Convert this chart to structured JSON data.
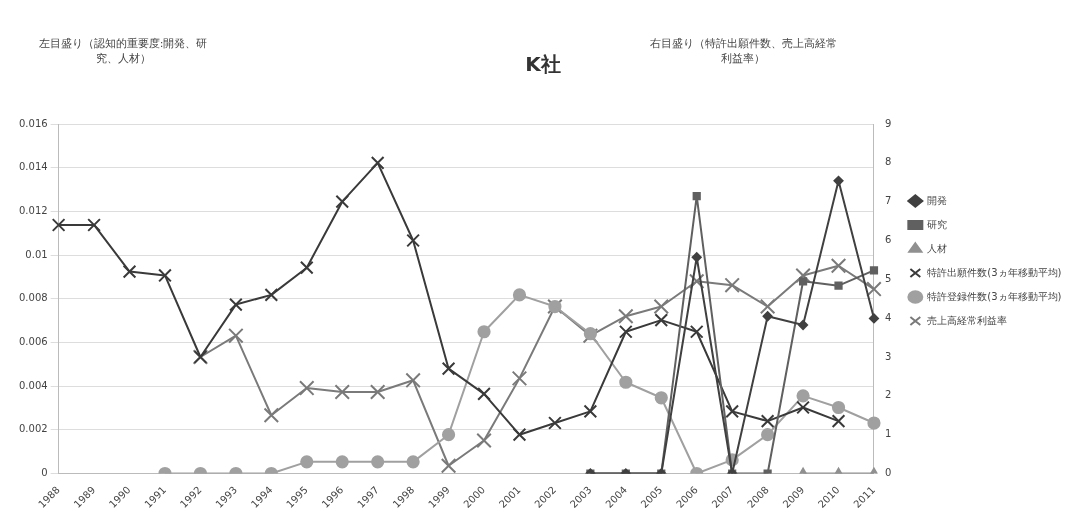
{
  "chart_data": {
    "type": "line",
    "title": "K社",
    "ylabel": "左目盛り（認知的重要度:開発、研究、人材）",
    "y2label": "右目盛り（特許出願件数、売上高経常利益率）",
    "categories": [
      "1988",
      "1989",
      "1990",
      "1991",
      "1992",
      "1993",
      "1994",
      "1995",
      "1996",
      "1997",
      "1998",
      "1999",
      "2000",
      "2001",
      "2002",
      "2003",
      "2004",
      "2005",
      "2006",
      "2007",
      "2008",
      "2009",
      "2010",
      "2011"
    ],
    "ylim": [
      0,
      0.016
    ],
    "yticks": [
      0,
      0.002,
      0.004,
      0.006,
      0.008,
      0.01,
      0.012,
      0.014,
      0.016
    ],
    "y2lim": [
      0,
      9
    ],
    "y2ticks": [
      0,
      1,
      2,
      3,
      4,
      5,
      6,
      7,
      8,
      9
    ],
    "grid": "y",
    "legend": "right",
    "series": [
      {
        "name": "開発",
        "color": "#404040",
        "marker": "diamond",
        "values": [
          null,
          null,
          null,
          null,
          null,
          null,
          null,
          null,
          null,
          null,
          null,
          null,
          null,
          null,
          null,
          0,
          0,
          0,
          0.0099,
          0,
          0.0072,
          0.0068,
          0.0134,
          0.0071
        ]
      },
      {
        "name": "研究",
        "color": "#606060",
        "marker": "square",
        "values": [
          null,
          null,
          null,
          null,
          null,
          null,
          null,
          null,
          null,
          null,
          null,
          null,
          null,
          null,
          null,
          0,
          0,
          0,
          0.0127,
          0,
          0,
          0.0088,
          0.0086,
          0.0093
        ]
      },
      {
        "name": "人材",
        "color": "#909090",
        "marker": "triangle",
        "values": [
          null,
          null,
          null,
          null,
          null,
          null,
          null,
          null,
          null,
          null,
          null,
          null,
          null,
          null,
          null,
          null,
          null,
          null,
          null,
          null,
          null,
          0,
          0,
          0
        ]
      },
      {
        "name": "特許出願件数(3ヵ年移動平均)",
        "color": "#3a3a3a",
        "marker": "cross",
        "axis": "y2",
        "values": [
          6.4,
          6.4,
          5.2,
          5.1,
          3.0,
          4.35,
          4.6,
          5.3,
          7.0,
          8.0,
          6.0,
          2.7,
          2.05,
          1.0,
          1.3,
          1.6,
          3.65,
          3.95,
          3.65,
          1.6,
          1.35,
          1.7,
          1.35,
          null
        ]
      },
      {
        "name": "特許登録件数(3ヵ年移動平均)",
        "color": "#a0a0a0",
        "marker": "circle",
        "axis": "y2",
        "values": [
          null,
          null,
          null,
          0,
          0,
          0,
          0,
          0.3,
          0.3,
          0.3,
          0.3,
          1.0,
          3.65,
          4.6,
          4.3,
          3.6,
          2.35,
          1.95,
          0,
          0.35,
          1.0,
          2.0,
          1.7,
          1.3
        ]
      },
      {
        "name": "売上高経常利益率",
        "color": "#7a7a7a",
        "marker": "cross",
        "axis": "y2",
        "values": [
          null,
          null,
          null,
          null,
          3.0,
          3.55,
          1.5,
          2.2,
          2.1,
          2.1,
          2.4,
          0.2,
          0.85,
          2.45,
          4.3,
          3.55,
          4.05,
          4.3,
          4.95,
          4.85,
          4.3,
          5.1,
          5.35,
          4.75
        ]
      }
    ]
  }
}
